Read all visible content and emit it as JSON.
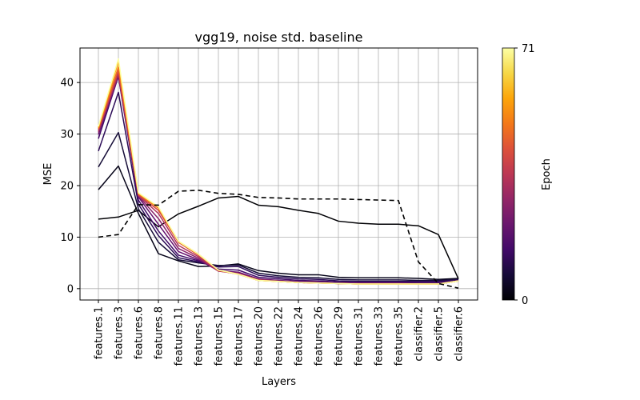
{
  "chart_data": {
    "type": "line",
    "title": "vgg19, noise std. baseline",
    "xlabel": "Layers",
    "ylabel": "MSE",
    "categories": [
      "features.1",
      "features.3",
      "features.6",
      "features.8",
      "features.11",
      "features.13",
      "features.15",
      "features.17",
      "features.20",
      "features.22",
      "features.24",
      "features.26",
      "features.29",
      "features.31",
      "features.33",
      "features.35",
      "classifier.2",
      "classifier.5",
      "classifier.6"
    ],
    "yticks": [
      0,
      10,
      20,
      30,
      40
    ],
    "ylim": [
      -2.2,
      46.7
    ],
    "grid": true,
    "colormap": "inferno",
    "colorbar": {
      "label": "Epoch",
      "min": 0,
      "max": 71,
      "ticks": [
        "0",
        "71"
      ]
    },
    "series": [
      {
        "epoch": 0,
        "style": "solid",
        "color": "#000004",
        "values": [
          13.5,
          13.9,
          15.2,
          12.0,
          14.5,
          16.0,
          17.6,
          17.9,
          16.2,
          15.9,
          15.2,
          14.6,
          13.1,
          12.7,
          12.5,
          12.5,
          12.2,
          10.5,
          1.9
        ]
      },
      {
        "epoch": 1,
        "style": "solid",
        "color": "#050318",
        "values": [
          19.2,
          23.8,
          14.6,
          6.8,
          5.4,
          4.3,
          4.4,
          4.8,
          3.5,
          3.0,
          2.7,
          2.7,
          2.2,
          2.1,
          2.1,
          2.1,
          2.0,
          1.8,
          2.0
        ]
      },
      {
        "epoch": 3,
        "style": "solid",
        "color": "#150c37",
        "values": [
          23.6,
          30.3,
          15.5,
          9.0,
          5.6,
          5.0,
          4.5,
          4.6,
          3.0,
          2.5,
          2.2,
          2.1,
          1.8,
          1.7,
          1.7,
          1.7,
          1.6,
          1.6,
          1.8
        ]
      },
      {
        "epoch": 6,
        "style": "solid",
        "color": "#2b0b57",
        "values": [
          26.7,
          38.1,
          16.4,
          10.3,
          6.0,
          5.2,
          4.2,
          4.3,
          2.6,
          2.2,
          1.9,
          1.8,
          1.5,
          1.4,
          1.4,
          1.4,
          1.4,
          1.4,
          1.7
        ]
      },
      {
        "epoch": 10,
        "style": "solid",
        "color": "#400a67",
        "values": [
          29.1,
          41.2,
          17.2,
          11.2,
          6.5,
          5.4,
          3.8,
          3.6,
          2.2,
          1.9,
          1.6,
          1.5,
          1.3,
          1.2,
          1.2,
          1.2,
          1.2,
          1.2,
          1.6
        ]
      },
      {
        "epoch": 18,
        "style": "solid",
        "color": "#650f6e",
        "values": [
          29.9,
          41.3,
          17.8,
          12.5,
          7.2,
          5.6,
          3.5,
          3.2,
          1.9,
          1.6,
          1.4,
          1.3,
          1.1,
          1.1,
          1.1,
          1.1,
          1.0,
          1.0,
          1.5
        ]
      },
      {
        "epoch": 28,
        "style": "solid",
        "color": "#8a226a",
        "values": [
          30.3,
          41.5,
          18.0,
          13.6,
          7.8,
          5.9,
          3.4,
          3.0,
          1.8,
          1.5,
          1.3,
          1.2,
          1.0,
          1.0,
          1.0,
          1.0,
          0.9,
          0.9,
          1.5
        ]
      },
      {
        "epoch": 38,
        "style": "solid",
        "color": "#b1325a",
        "values": [
          30.6,
          41.8,
          18.1,
          14.6,
          8.4,
          6.2,
          3.4,
          2.9,
          1.7,
          1.4,
          1.2,
          1.1,
          1.0,
          0.9,
          0.9,
          0.9,
          0.9,
          0.9,
          1.5
        ]
      },
      {
        "epoch": 48,
        "style": "solid",
        "color": "#d44842",
        "values": [
          30.9,
          42.3,
          18.2,
          15.2,
          9.0,
          6.5,
          3.5,
          2.8,
          1.6,
          1.4,
          1.2,
          1.1,
          1.0,
          0.9,
          0.9,
          0.9,
          0.9,
          0.9,
          1.5
        ]
      },
      {
        "epoch": 58,
        "style": "solid",
        "color": "#f1711f",
        "values": [
          31.1,
          43.0,
          18.4,
          15.6,
          9.1,
          6.6,
          3.6,
          2.8,
          1.6,
          1.4,
          1.2,
          1.1,
          1.0,
          0.9,
          0.9,
          0.9,
          0.9,
          0.9,
          1.5
        ]
      },
      {
        "epoch": 66,
        "style": "solid",
        "color": "#fbaf12",
        "values": [
          31.3,
          44.0,
          18.5,
          15.8,
          9.2,
          6.7,
          3.6,
          2.8,
          1.6,
          1.4,
          1.2,
          1.1,
          1.0,
          0.9,
          0.9,
          0.9,
          0.9,
          0.9,
          1.5
        ]
      },
      {
        "epoch": 71,
        "style": "solid",
        "color": "#fcffa4",
        "values": [
          31.5,
          44.6,
          18.6,
          15.9,
          9.2,
          6.7,
          3.6,
          2.8,
          1.6,
          1.4,
          1.2,
          1.1,
          1.0,
          0.9,
          0.9,
          0.9,
          0.9,
          0.9,
          1.5
        ]
      },
      {
        "style": "dashed",
        "color": "#000000",
        "values": [
          10.0,
          10.5,
          16.3,
          16.2,
          18.9,
          19.1,
          18.5,
          18.3,
          17.7,
          17.6,
          17.4,
          17.4,
          17.4,
          17.3,
          17.2,
          17.1,
          5.2,
          1.0,
          0.1
        ]
      }
    ]
  }
}
